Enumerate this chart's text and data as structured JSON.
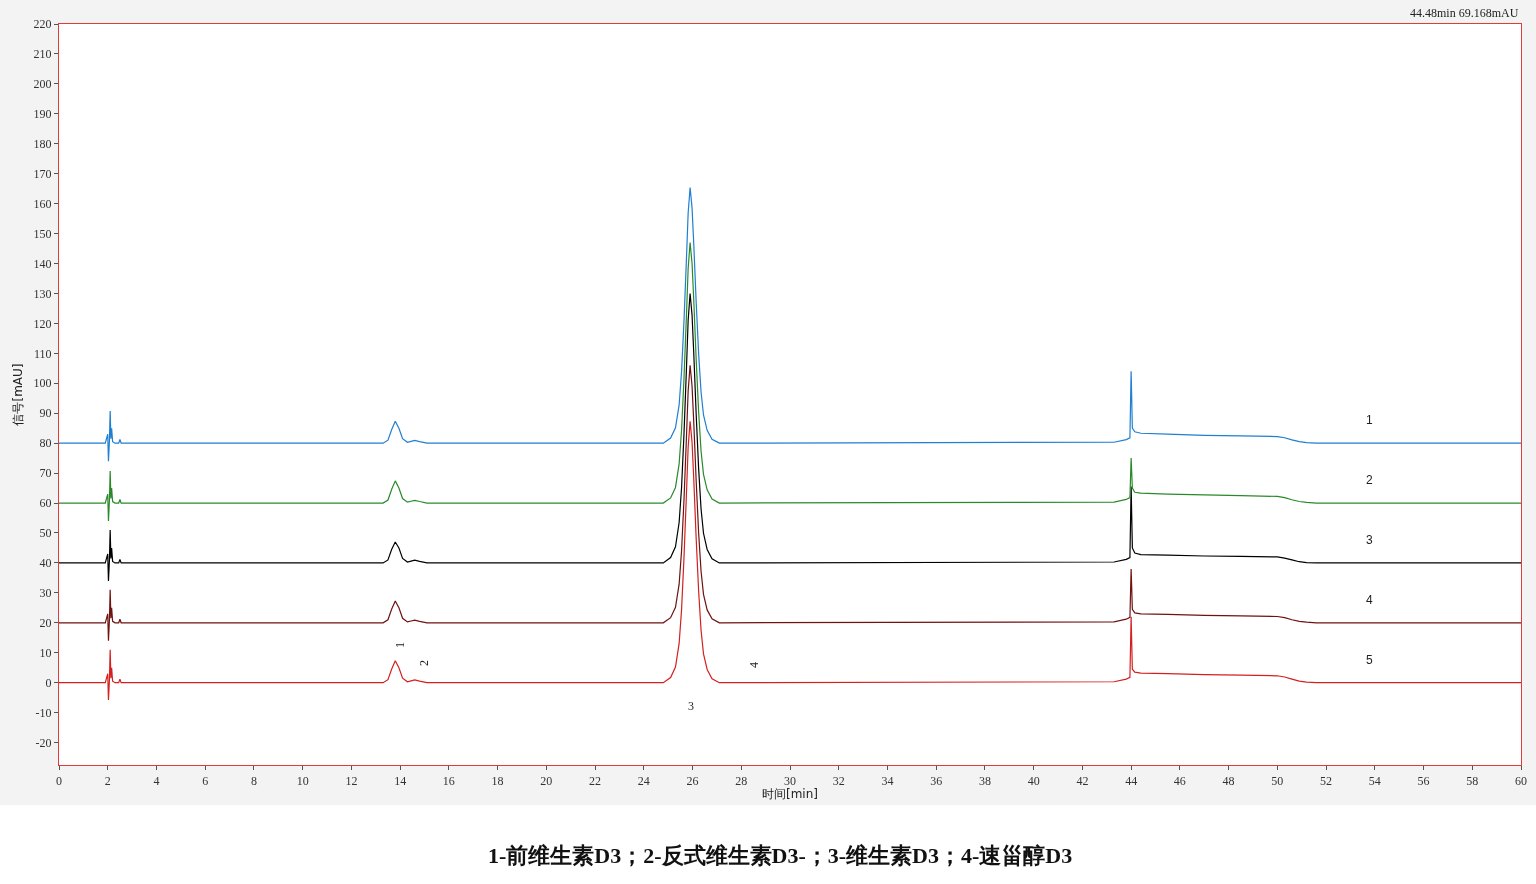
{
  "chart_data": {
    "type": "line",
    "xlabel": "时间[min]",
    "ylabel": "信号[mAU]",
    "x": [
      0,
      1.9,
      2.0,
      2.03,
      2.07,
      2.1,
      2.13,
      2.16,
      2.2,
      2.3,
      2.45,
      2.5,
      2.55,
      2.7,
      13.3,
      13.5,
      13.65,
      13.8,
      13.95,
      14.1,
      14.3,
      14.45,
      14.6,
      14.8,
      15.1,
      24.8,
      25.1,
      25.3,
      25.45,
      25.55,
      25.65,
      25.75,
      25.82,
      25.9,
      25.98,
      26.05,
      26.15,
      26.25,
      26.35,
      26.45,
      26.6,
      26.8,
      27.1,
      43.3,
      43.8,
      43.95,
      44.0,
      44.05,
      44.15,
      44.4,
      45.5,
      47.0,
      48.5,
      50.0,
      50.3,
      50.6,
      50.9,
      51.2,
      51.6,
      60
    ],
    "series": [
      {
        "name": "1",
        "color": "#1f7fd0",
        "values": [
          80,
          80,
          83,
          74,
          81,
          90.7,
          81.5,
          85,
          80.5,
          80,
          80,
          81.2,
          80,
          80,
          80,
          81,
          84.5,
          87.3,
          85,
          81.5,
          80.3,
          80.6,
          80.9,
          80.5,
          80,
          80,
          81.7,
          85.1,
          92.8,
          103.9,
          121.0,
          141.5,
          156.9,
          165.4,
          158.6,
          146.6,
          127.0,
          109.9,
          97.1,
          89.4,
          84.3,
          81.3,
          80,
          80.3,
          81.2,
          81.8,
          104,
          85,
          83.8,
          83.3,
          83.0,
          82.6,
          82.4,
          82.2,
          81.8,
          81.1,
          80.5,
          80.2,
          80,
          80
        ]
      },
      {
        "name": "2",
        "color": "#2a8a2a",
        "values": [
          60,
          60,
          63,
          54,
          61,
          70.7,
          61.5,
          65,
          60.5,
          60,
          60,
          61.2,
          60,
          60,
          60,
          61,
          64.5,
          67.4,
          65,
          61.5,
          60.3,
          60.6,
          60.9,
          60.5,
          60,
          60,
          61.7,
          65.2,
          73.1,
          84.4,
          101.8,
          122.6,
          138.3,
          147,
          140.0,
          127.9,
          107.9,
          90.5,
          77.4,
          69.6,
          64.4,
          61.3,
          60,
          60.3,
          61.2,
          61.8,
          75,
          65,
          63.6,
          63.3,
          63.0,
          62.7,
          62.5,
          62.2,
          61.8,
          61.1,
          60.5,
          60.2,
          60,
          60
        ]
      },
      {
        "name": "3",
        "color": "#000000",
        "values": [
          40,
          40,
          43,
          34,
          41,
          51,
          41.5,
          45,
          40.5,
          40,
          40,
          41.2,
          40,
          40,
          40,
          41,
          44.5,
          47,
          45,
          41.5,
          40.3,
          40.6,
          40.9,
          40.5,
          40,
          40,
          41.8,
          45.4,
          53.5,
          65.2,
          83.2,
          104.8,
          121,
          130,
          122.8,
          110.2,
          89.5,
          71.5,
          58,
          49.9,
          44.5,
          41.4,
          40,
          40.3,
          41.2,
          41.8,
          65.5,
          45,
          43.3,
          42.8,
          42.6,
          42.3,
          42.2,
          42.0,
          41.6,
          41.0,
          40.4,
          40.1,
          40,
          40
        ]
      },
      {
        "name": "4",
        "color": "#6e1212",
        "values": [
          20,
          20,
          23,
          14,
          21,
          31,
          21.5,
          25,
          20.5,
          20,
          20,
          21.2,
          20,
          20,
          20,
          21,
          24.5,
          27.3,
          25,
          21.5,
          20.3,
          20.6,
          20.9,
          20.5,
          20,
          20,
          21.7,
          25.2,
          32.9,
          44.1,
          61.3,
          81.9,
          97.4,
          106,
          99.1,
          87.1,
          67.3,
          50.1,
          37.2,
          29.5,
          24.3,
          21.3,
          20,
          20.3,
          21.2,
          21.8,
          38,
          24.5,
          23.3,
          23.0,
          22.8,
          22.5,
          22.3,
          22.1,
          21.7,
          21.0,
          20.5,
          20.2,
          20,
          20
        ]
      },
      {
        "name": "5",
        "color": "#d42020",
        "values": [
          0,
          0,
          3,
          -5.8,
          1,
          11,
          1.5,
          5,
          0.5,
          0,
          0,
          1.2,
          0,
          0,
          0,
          1,
          4.5,
          7.3,
          5,
          1.5,
          0.3,
          0.6,
          0.9,
          0.5,
          0,
          0,
          1.7,
          5.2,
          13.1,
          24.4,
          41.9,
          62.9,
          78.6,
          87.3,
          80.3,
          68.1,
          48.0,
          30.6,
          17.5,
          9.6,
          4.4,
          1.3,
          0,
          0.3,
          1.2,
          1.8,
          22,
          4.5,
          3.5,
          3.2,
          3.0,
          2.7,
          2.5,
          2.3,
          1.9,
          1.2,
          0.5,
          0.2,
          0,
          0
        ]
      }
    ],
    "xlim": [
      0,
      60
    ],
    "xticks": [
      0,
      2,
      4,
      6,
      8,
      10,
      12,
      14,
      16,
      18,
      20,
      22,
      24,
      26,
      28,
      30,
      32,
      34,
      36,
      38,
      40,
      42,
      44,
      46,
      48,
      50,
      52,
      54,
      56,
      58,
      60
    ],
    "ylim": [
      -27.5,
      220
    ],
    "yticks": [
      -20,
      -10,
      0,
      10,
      20,
      30,
      40,
      50,
      60,
      70,
      80,
      90,
      100,
      110,
      120,
      130,
      140,
      150,
      160,
      170,
      180,
      190,
      200,
      210,
      220
    ],
    "line_style": "solid",
    "grid": false,
    "legend": false,
    "annotations": [
      "1",
      "2",
      "3",
      "4",
      "44.48min 69.168mAU",
      "1-前维生素D3；2-反式维生素D3-；3-维生素D3；4-速甾醇D3"
    ]
  }
}
